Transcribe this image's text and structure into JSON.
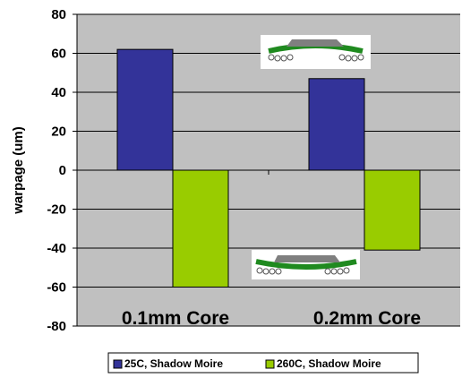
{
  "chart_data": {
    "type": "bar",
    "categories": [
      "0.1mm Core",
      "0.2mm Core"
    ],
    "series": [
      {
        "name": "25C, Shadow Moire",
        "values": [
          62,
          47
        ]
      },
      {
        "name": "260C, Shadow Moire",
        "values": [
          -60,
          -41
        ]
      }
    ],
    "xlabel": "",
    "ylabel": "warpage (um)",
    "ylim": [
      -80,
      80
    ],
    "yticks": [
      80,
      60,
      40,
      20,
      0,
      -20,
      -40,
      -60,
      -80
    ],
    "grid": true,
    "legend_position": "bottom",
    "colors": {
      "plot_background": "#c0c0c0",
      "series": [
        "#333399",
        "#99cc00"
      ],
      "substrate": "#1f8a1f",
      "die": "#7f7f7f"
    }
  }
}
